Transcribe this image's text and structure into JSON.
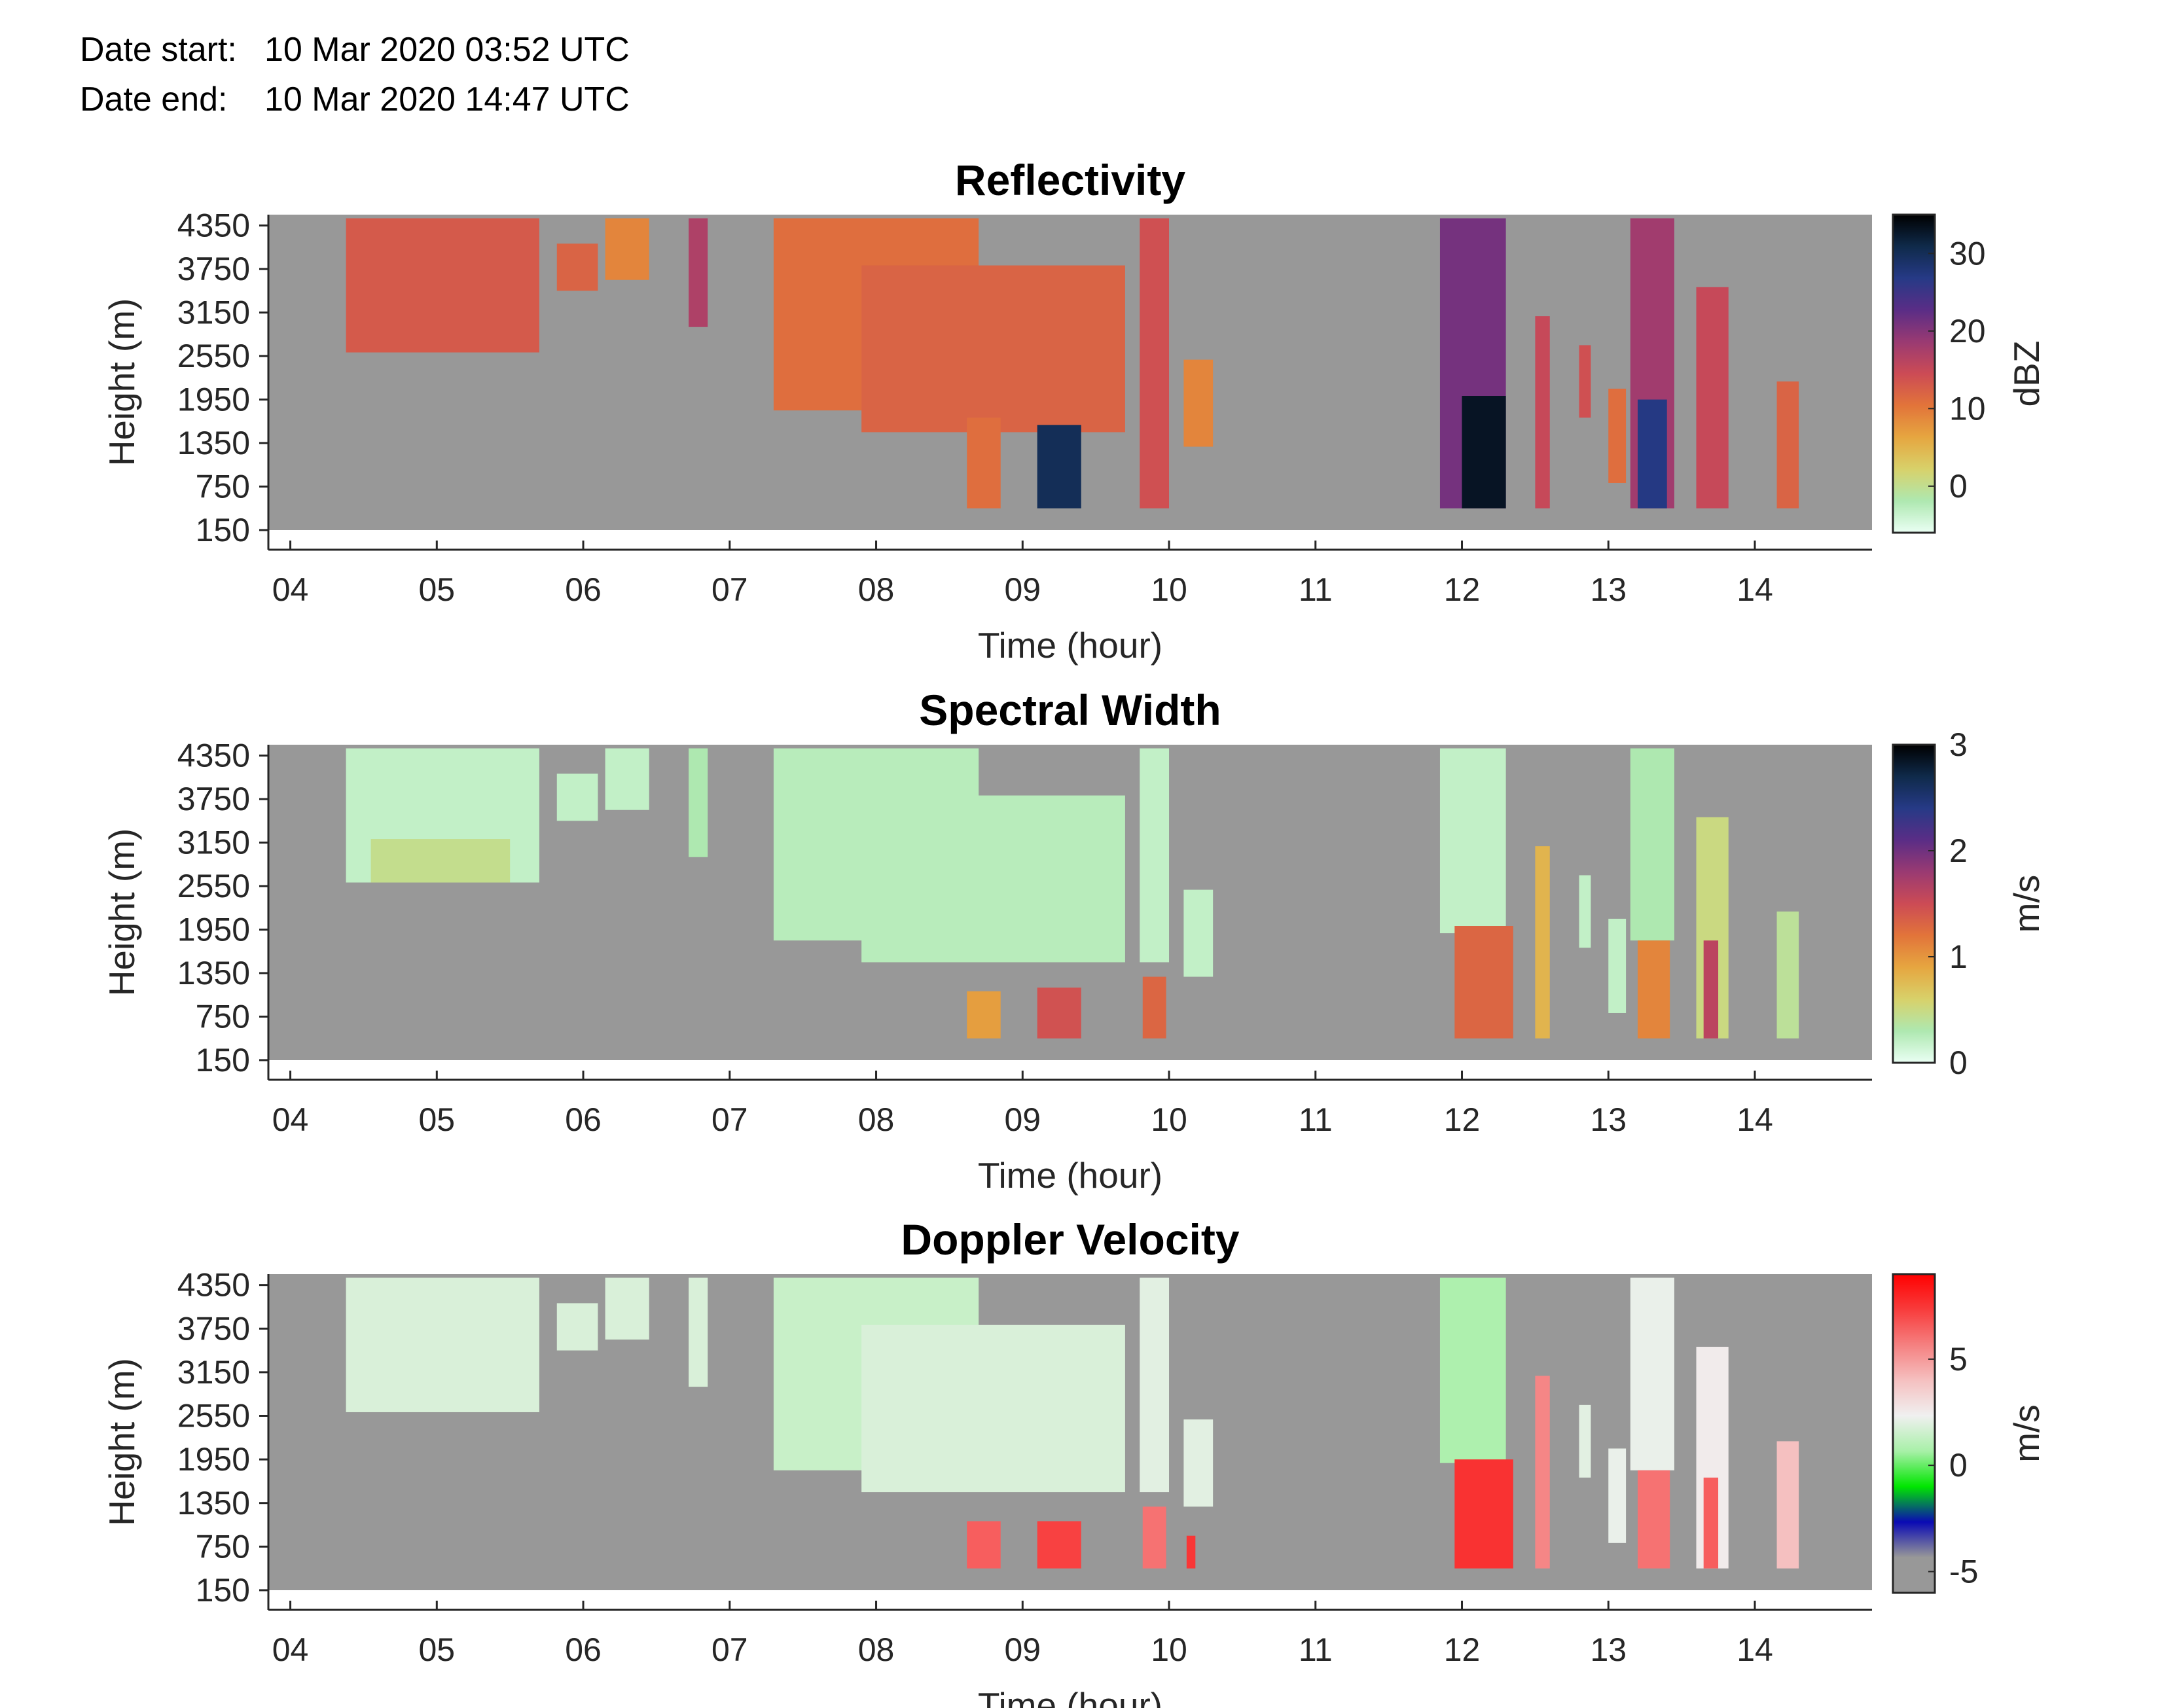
{
  "header": {
    "start_label": "Date start:",
    "start_value": "10 Mar 2020 03:52 UTC",
    "end_label": "Date end:",
    "end_value": "10 Mar 2020 14:47 UTC"
  },
  "colors": {
    "missing": "#989898"
  },
  "chart_data": [
    {
      "type": "heatmap",
      "title": "Reflectivity",
      "xlabel": "Time (hour)",
      "ylabel": "Height (m)",
      "xlim": [
        3.85,
        14.8
      ],
      "ylim": [
        150,
        4500
      ],
      "xticks": [
        "04",
        "05",
        "06",
        "07",
        "08",
        "09",
        "10",
        "11",
        "12",
        "13",
        "14"
      ],
      "yticks": [
        150,
        750,
        1350,
        1950,
        2550,
        3150,
        3750,
        4350
      ],
      "colorbar": {
        "label": "dBZ",
        "range": [
          -6,
          35
        ],
        "ticks": [
          0,
          10,
          20,
          30
        ],
        "colormap": [
          "#eafff4",
          "#aee8b0",
          "#d8d16a",
          "#e6a640",
          "#e2743a",
          "#cc4b55",
          "#9a3a72",
          "#5a2d86",
          "#263a86",
          "#0f2a4a",
          "#000000"
        ]
      },
      "cells": [
        {
          "t0": 4.38,
          "t1": 5.7,
          "h0": 2600,
          "h1": 4450,
          "v": 13
        },
        {
          "t0": 5.82,
          "t1": 6.1,
          "h0": 3450,
          "h1": 4100,
          "v": 12
        },
        {
          "t0": 6.15,
          "t1": 6.45,
          "h0": 3600,
          "h1": 4450,
          "v": 9
        },
        {
          "t0": 6.72,
          "t1": 6.85,
          "h0": 2950,
          "h1": 4450,
          "v": 17
        },
        {
          "t0": 7.3,
          "t1": 8.7,
          "h0": 1800,
          "h1": 4450,
          "v": 11
        },
        {
          "t0": 7.9,
          "t1": 9.7,
          "h0": 1500,
          "h1": 3800,
          "v": 12
        },
        {
          "t0": 8.62,
          "t1": 8.85,
          "h0": 450,
          "h1": 1700,
          "v": 11
        },
        {
          "t0": 9.1,
          "t1": 9.4,
          "h0": 450,
          "h1": 1600,
          "v": 30
        },
        {
          "t0": 9.8,
          "t1": 10.0,
          "h0": 450,
          "h1": 4450,
          "v": 14
        },
        {
          "t0": 10.1,
          "t1": 10.3,
          "h0": 1300,
          "h1": 2500,
          "v": 9
        },
        {
          "t0": 11.85,
          "t1": 12.3,
          "h0": 450,
          "h1": 4450,
          "v": 21
        },
        {
          "t0": 12.0,
          "t1": 12.3,
          "h0": 450,
          "h1": 2000,
          "v": 33
        },
        {
          "t0": 12.5,
          "t1": 12.6,
          "h0": 450,
          "h1": 3100,
          "v": 15
        },
        {
          "t0": 12.8,
          "t1": 12.88,
          "h0": 1700,
          "h1": 2700,
          "v": 14
        },
        {
          "t0": 13.0,
          "t1": 13.12,
          "h0": 800,
          "h1": 2100,
          "v": 11
        },
        {
          "t0": 13.15,
          "t1": 13.45,
          "h0": 450,
          "h1": 4450,
          "v": 18
        },
        {
          "t0": 13.2,
          "t1": 13.4,
          "h0": 450,
          "h1": 1950,
          "v": 27
        },
        {
          "t0": 13.6,
          "t1": 13.82,
          "h0": 450,
          "h1": 3500,
          "v": 15
        },
        {
          "t0": 14.15,
          "t1": 14.3,
          "h0": 450,
          "h1": 2200,
          "v": 12
        }
      ]
    },
    {
      "type": "heatmap",
      "title": "Spectral Width",
      "xlabel": "Time (hour)",
      "ylabel": "Height (m)",
      "xlim": [
        3.85,
        14.8
      ],
      "ylim": [
        150,
        4500
      ],
      "xticks": [
        "04",
        "05",
        "06",
        "07",
        "08",
        "09",
        "10",
        "11",
        "12",
        "13",
        "14"
      ],
      "yticks": [
        150,
        750,
        1350,
        1950,
        2550,
        3150,
        3750,
        4350
      ],
      "colorbar": {
        "label": "m/s",
        "range": [
          0,
          3
        ],
        "ticks": [
          0,
          1,
          2,
          3
        ],
        "colormap": [
          "#eafff4",
          "#aee8b0",
          "#d8d16a",
          "#e6a640",
          "#e2743a",
          "#cc4b55",
          "#9a3a72",
          "#5a2d86",
          "#263a86",
          "#0f2a4a",
          "#000000"
        ]
      },
      "cells": [
        {
          "t0": 4.38,
          "t1": 5.7,
          "h0": 2600,
          "h1": 4450,
          "v": 0.2
        },
        {
          "t0": 4.55,
          "t1": 5.5,
          "h0": 2600,
          "h1": 3200,
          "v": 0.45
        },
        {
          "t0": 5.82,
          "t1": 6.1,
          "h0": 3450,
          "h1": 4100,
          "v": 0.2
        },
        {
          "t0": 6.15,
          "t1": 6.45,
          "h0": 3600,
          "h1": 4450,
          "v": 0.2
        },
        {
          "t0": 6.72,
          "t1": 6.85,
          "h0": 2950,
          "h1": 4450,
          "v": 0.3
        },
        {
          "t0": 7.3,
          "t1": 8.7,
          "h0": 1800,
          "h1": 4450,
          "v": 0.25
        },
        {
          "t0": 7.9,
          "t1": 9.7,
          "h0": 1500,
          "h1": 3800,
          "v": 0.25
        },
        {
          "t0": 8.62,
          "t1": 8.85,
          "h0": 450,
          "h1": 1100,
          "v": 0.95
        },
        {
          "t0": 9.1,
          "t1": 9.4,
          "h0": 450,
          "h1": 1150,
          "v": 1.45
        },
        {
          "t0": 9.8,
          "t1": 10.0,
          "h0": 1500,
          "h1": 4450,
          "v": 0.2
        },
        {
          "t0": 9.82,
          "t1": 9.98,
          "h0": 450,
          "h1": 1300,
          "v": 1.3
        },
        {
          "t0": 10.1,
          "t1": 10.3,
          "h0": 1300,
          "h1": 2500,
          "v": 0.2
        },
        {
          "t0": 11.85,
          "t1": 12.3,
          "h0": 1900,
          "h1": 4450,
          "v": 0.2
        },
        {
          "t0": 11.95,
          "t1": 12.35,
          "h0": 450,
          "h1": 2000,
          "v": 1.3
        },
        {
          "t0": 12.5,
          "t1": 12.6,
          "h0": 450,
          "h1": 3100,
          "v": 0.8
        },
        {
          "t0": 12.8,
          "t1": 12.88,
          "h0": 1700,
          "h1": 2700,
          "v": 0.2
        },
        {
          "t0": 13.0,
          "t1": 13.12,
          "h0": 800,
          "h1": 2100,
          "v": 0.2
        },
        {
          "t0": 13.15,
          "t1": 13.45,
          "h0": 1800,
          "h1": 4450,
          "v": 0.3
        },
        {
          "t0": 13.2,
          "t1": 13.42,
          "h0": 450,
          "h1": 1800,
          "v": 1.1
        },
        {
          "t0": 13.6,
          "t1": 13.82,
          "h0": 450,
          "h1": 3500,
          "v": 0.5
        },
        {
          "t0": 13.65,
          "t1": 13.75,
          "h0": 450,
          "h1": 1800,
          "v": 1.6
        },
        {
          "t0": 14.15,
          "t1": 14.3,
          "h0": 450,
          "h1": 2200,
          "v": 0.4
        }
      ]
    },
    {
      "type": "heatmap",
      "title": "Doppler Velocity",
      "xlabel": "Time (hour)",
      "ylabel": "Height (m)",
      "xlim": [
        3.85,
        14.8
      ],
      "ylim": [
        150,
        4500
      ],
      "xticks": [
        "04",
        "05",
        "06",
        "07",
        "08",
        "09",
        "10",
        "11",
        "12",
        "13",
        "14"
      ],
      "yticks": [
        150,
        750,
        1350,
        1950,
        2550,
        3150,
        3750,
        4350
      ],
      "colorbar": {
        "label": "m/s",
        "range": [
          -6,
          9
        ],
        "ticks": [
          -5,
          0,
          5
        ],
        "colormap": [
          "#989898",
          "#989898",
          "#0a0ab4",
          "#00e600",
          "#a8f0a8",
          "#f0f0f0",
          "#f5c0c0",
          "#f58080",
          "#f83c3c",
          "#ff0000"
        ]
      },
      "cells": [
        {
          "t0": 4.38,
          "t1": 5.7,
          "h0": 2600,
          "h1": 4450,
          "v": 1.8
        },
        {
          "t0": 5.82,
          "t1": 6.1,
          "h0": 3450,
          "h1": 4100,
          "v": 1.8
        },
        {
          "t0": 6.15,
          "t1": 6.45,
          "h0": 3600,
          "h1": 4450,
          "v": 1.8
        },
        {
          "t0": 6.72,
          "t1": 6.85,
          "h0": 2950,
          "h1": 4450,
          "v": 1.8
        },
        {
          "t0": 7.3,
          "t1": 8.7,
          "h0": 1800,
          "h1": 4450,
          "v": 1.4
        },
        {
          "t0": 7.9,
          "t1": 9.7,
          "h0": 1500,
          "h1": 3800,
          "v": 1.8
        },
        {
          "t0": 8.62,
          "t1": 8.85,
          "h0": 450,
          "h1": 1100,
          "v": 6.5
        },
        {
          "t0": 9.1,
          "t1": 9.4,
          "h0": 450,
          "h1": 1100,
          "v": 7.2
        },
        {
          "t0": 9.8,
          "t1": 10.0,
          "h0": 1500,
          "h1": 4450,
          "v": 2.0
        },
        {
          "t0": 9.82,
          "t1": 9.98,
          "h0": 450,
          "h1": 1300,
          "v": 6.0
        },
        {
          "t0": 10.1,
          "t1": 10.3,
          "h0": 1300,
          "h1": 2500,
          "v": 2.0
        },
        {
          "t0": 10.12,
          "t1": 10.18,
          "h0": 450,
          "h1": 900,
          "v": 7.5
        },
        {
          "t0": 11.85,
          "t1": 12.3,
          "h0": 1900,
          "h1": 4450,
          "v": 0.8
        },
        {
          "t0": 11.95,
          "t1": 12.35,
          "h0": 450,
          "h1": 1950,
          "v": 7.6
        },
        {
          "t0": 12.5,
          "t1": 12.6,
          "h0": 450,
          "h1": 3100,
          "v": 5.5
        },
        {
          "t0": 12.8,
          "t1": 12.88,
          "h0": 1700,
          "h1": 2700,
          "v": 2.0
        },
        {
          "t0": 13.0,
          "t1": 13.12,
          "h0": 800,
          "h1": 2100,
          "v": 2.2
        },
        {
          "t0": 13.15,
          "t1": 13.45,
          "h0": 1800,
          "h1": 4450,
          "v": 2.2
        },
        {
          "t0": 13.2,
          "t1": 13.42,
          "h0": 450,
          "h1": 1800,
          "v": 6.0
        },
        {
          "t0": 13.6,
          "t1": 13.82,
          "h0": 450,
          "h1": 3500,
          "v": 2.5
        },
        {
          "t0": 13.65,
          "t1": 13.75,
          "h0": 450,
          "h1": 1700,
          "v": 6.5
        },
        {
          "t0": 14.15,
          "t1": 14.3,
          "h0": 450,
          "h1": 2200,
          "v": 4.0
        }
      ]
    }
  ]
}
